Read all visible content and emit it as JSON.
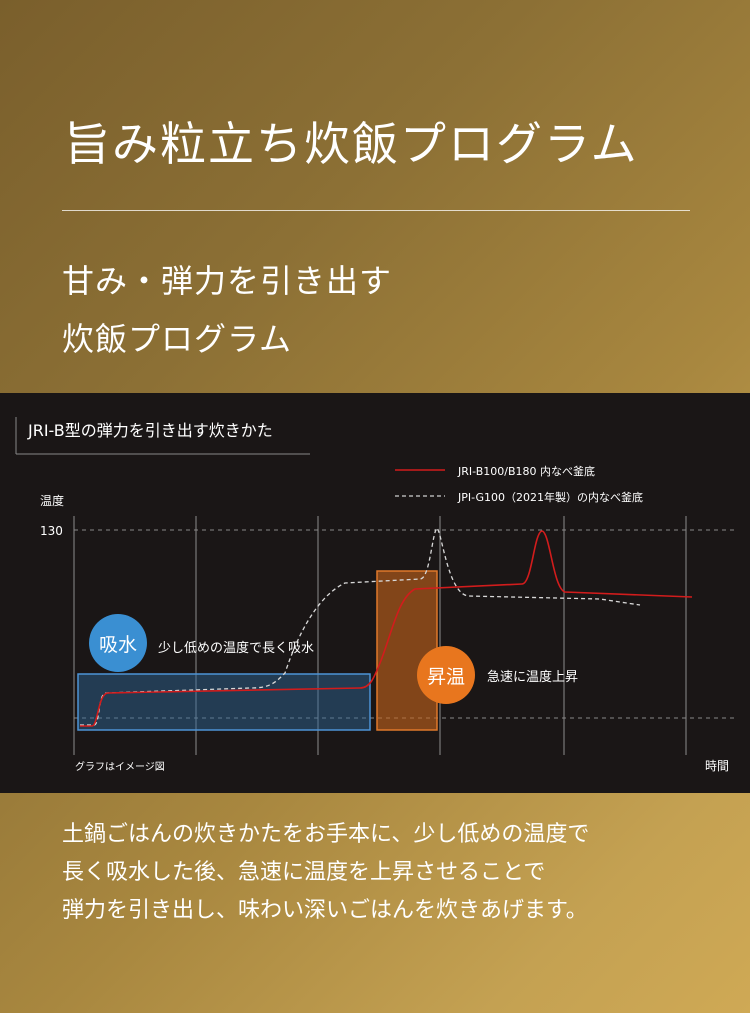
{
  "header": {
    "title": "旨み粒立ち炊飯プログラム",
    "subtitle_line1": "甘み・弾力を引き出す",
    "subtitle_line2": "炊飯プログラム"
  },
  "graph": {
    "heading": "JRI-B型の弾力を引き出す炊きかた",
    "legend": [
      {
        "label": "JRI-B100/B180 内なべ釜底",
        "color": "#d21c1c",
        "style": "solid"
      },
      {
        "label": "JPI-G100（2021年製）の内なべ釜底",
        "color": "#cfcfcf",
        "style": "dashed"
      }
    ],
    "y_axis_label": "温度",
    "y_tick": "130",
    "x_axis_label": "時間",
    "note": "グラフはイメージ図",
    "phase1": {
      "badge": "吸水",
      "caption": "少し低めの温度で長く吸水",
      "badge_color": "#3a8fd2",
      "box_color": "#2f6a9e"
    },
    "phase2": {
      "badge": "昇温",
      "caption": "急速に温度上昇",
      "badge_color": "#e8761e",
      "box_color": "#c8661c"
    }
  },
  "description": {
    "line1": "土鍋ごはんの炊きかたをお手本に、少し低めの温度で",
    "line2": "長く吸水した後、急速に温度を上昇させることで",
    "line3": "弾力を引き出し、味わい深いごはんを炊きあげます。"
  }
}
